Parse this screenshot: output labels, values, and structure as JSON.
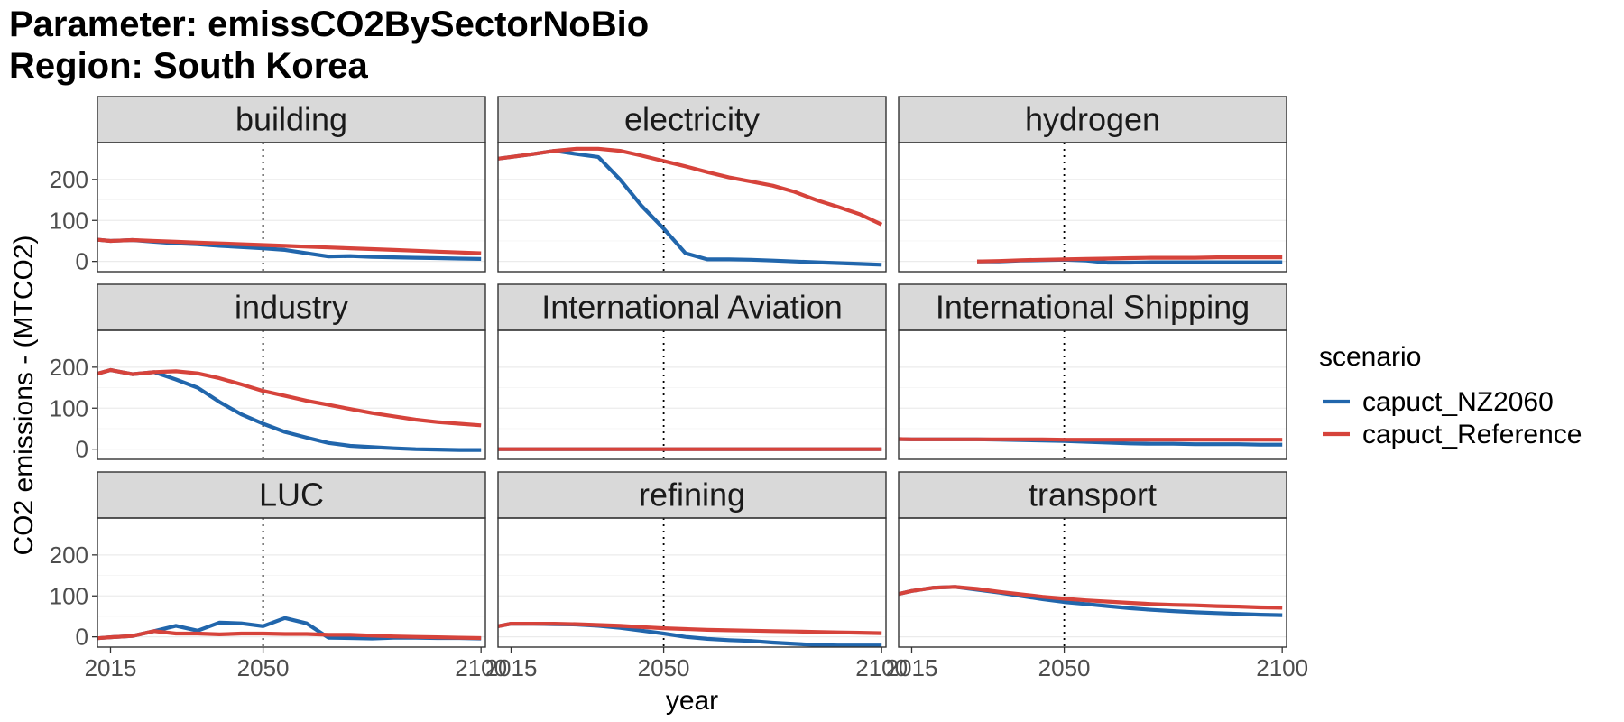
{
  "title_lines": [
    "Parameter: emissCO2BySectorNoBio",
    "Region: South Korea"
  ],
  "colors": {
    "capuct_NZ2060": "#2166ac",
    "capuct_Reference": "#d6433b",
    "strip_fill": "#d9d9d9",
    "grid": "#ebebeb"
  },
  "chart_data": {
    "type": "line",
    "xlabel": "year",
    "ylabel": "CO2 emissions - (MTCO2)",
    "x_ticks": [
      2015,
      2050,
      2100
    ],
    "y_ticks": [
      0,
      100,
      200
    ],
    "xlim": [
      2012,
      2101
    ],
    "ylim": [
      -25,
      290
    ],
    "vline_x": 2050,
    "legend": {
      "title": "scenario",
      "position": "right",
      "entries": [
        "capuct_NZ2060",
        "capuct_Reference"
      ]
    },
    "panels": [
      {
        "name": "building",
        "series": [
          {
            "name": "capuct_NZ2060",
            "x": [
              2010,
              2015,
              2020,
              2025,
              2030,
              2035,
              2040,
              2045,
              2050,
              2055,
              2060,
              2065,
              2070,
              2075,
              2080,
              2085,
              2090,
              2095,
              2100
            ],
            "values": [
              55,
              50,
              52,
              48,
              44,
              42,
              38,
              35,
              32,
              28,
              20,
              12,
              13,
              11,
              10,
              9,
              8,
              7,
              6
            ]
          },
          {
            "name": "capuct_Reference",
            "x": [
              2010,
              2015,
              2020,
              2025,
              2030,
              2035,
              2040,
              2045,
              2050,
              2055,
              2060,
              2065,
              2070,
              2075,
              2080,
              2085,
              2090,
              2095,
              2100
            ],
            "values": [
              55,
              50,
              52,
              50,
              48,
              46,
              44,
              42,
              40,
              38,
              36,
              34,
              32,
              30,
              28,
              26,
              24,
              22,
              20
            ]
          }
        ]
      },
      {
        "name": "electricity",
        "series": [
          {
            "name": "capuct_NZ2060",
            "x": [
              2010,
              2015,
              2020,
              2025,
              2030,
              2035,
              2040,
              2045,
              2050,
              2055,
              2060,
              2065,
              2070,
              2075,
              2080,
              2085,
              2090,
              2095,
              2100
            ],
            "values": [
              248,
              255,
              262,
              270,
              262,
              255,
              200,
              135,
              80,
              20,
              5,
              5,
              4,
              2,
              0,
              -2,
              -4,
              -6,
              -8
            ]
          },
          {
            "name": "capuct_Reference",
            "x": [
              2010,
              2015,
              2020,
              2025,
              2030,
              2035,
              2040,
              2045,
              2050,
              2055,
              2060,
              2065,
              2070,
              2075,
              2080,
              2085,
              2090,
              2095,
              2100
            ],
            "values": [
              248,
              255,
              262,
              270,
              275,
              275,
              270,
              258,
              245,
              232,
              218,
              205,
              195,
              185,
              170,
              150,
              133,
              115,
              90
            ]
          }
        ]
      },
      {
        "name": "hydrogen",
        "series": [
          {
            "name": "capuct_NZ2060",
            "x": [
              2030,
              2035,
              2040,
              2045,
              2050,
              2055,
              2060,
              2065,
              2070,
              2075,
              2080,
              2085,
              2090,
              2095,
              2100
            ],
            "values": [
              0,
              0,
              2,
              3,
              4,
              2,
              -3,
              -3,
              -2,
              -2,
              -2,
              -2,
              -2,
              -2,
              -2
            ]
          },
          {
            "name": "capuct_Reference",
            "x": [
              2030,
              2035,
              2040,
              2045,
              2050,
              2055,
              2060,
              2065,
              2070,
              2075,
              2080,
              2085,
              2090,
              2095,
              2100
            ],
            "values": [
              0,
              1,
              3,
              4,
              5,
              6,
              7,
              8,
              9,
              9,
              9,
              10,
              10,
              10,
              10
            ]
          }
        ]
      },
      {
        "name": "industry",
        "series": [
          {
            "name": "capuct_NZ2060",
            "x": [
              2010,
              2015,
              2020,
              2025,
              2030,
              2035,
              2040,
              2045,
              2050,
              2055,
              2060,
              2065,
              2070,
              2075,
              2080,
              2085,
              2090,
              2095,
              2100
            ],
            "values": [
              178,
              193,
              183,
              188,
              170,
              150,
              115,
              85,
              62,
              42,
              28,
              15,
              8,
              5,
              2,
              0,
              -1,
              -2,
              -2
            ]
          },
          {
            "name": "capuct_Reference",
            "x": [
              2010,
              2015,
              2020,
              2025,
              2030,
              2035,
              2040,
              2045,
              2050,
              2055,
              2060,
              2065,
              2070,
              2075,
              2080,
              2085,
              2090,
              2095,
              2100
            ],
            "values": [
              178,
              193,
              183,
              188,
              190,
              185,
              173,
              158,
              142,
              130,
              118,
              108,
              98,
              88,
              80,
              72,
              66,
              62,
              58
            ]
          }
        ]
      },
      {
        "name": "International Aviation",
        "series": [
          {
            "name": "capuct_NZ2060",
            "x": [
              2010,
              2100
            ],
            "values": [
              0,
              0
            ]
          },
          {
            "name": "capuct_Reference",
            "x": [
              2010,
              2100
            ],
            "values": [
              0,
              0
            ]
          }
        ]
      },
      {
        "name": "International Shipping",
        "series": [
          {
            "name": "capuct_NZ2060",
            "x": [
              2010,
              2015,
              2020,
              2025,
              2030,
              2035,
              2040,
              2045,
              2050,
              2055,
              2060,
              2065,
              2070,
              2075,
              2080,
              2085,
              2090,
              2095,
              2100
            ],
            "values": [
              25,
              24,
              24,
              24,
              24,
              23,
              22,
              21,
              20,
              18,
              16,
              14,
              13,
              13,
              12,
              12,
              12,
              11,
              11
            ]
          },
          {
            "name": "capuct_Reference",
            "x": [
              2010,
              2015,
              2020,
              2025,
              2030,
              2035,
              2040,
              2045,
              2050,
              2055,
              2060,
              2065,
              2070,
              2075,
              2080,
              2085,
              2090,
              2095,
              2100
            ],
            "values": [
              25,
              24,
              24,
              24,
              24,
              24,
              24,
              24,
              23,
              23,
              23,
              23,
              23,
              23,
              23,
              23,
              23,
              23,
              23
            ]
          }
        ]
      },
      {
        "name": "LUC",
        "series": [
          {
            "name": "capuct_NZ2060",
            "x": [
              2010,
              2015,
              2020,
              2025,
              2030,
              2035,
              2040,
              2045,
              2050,
              2055,
              2060,
              2065,
              2070,
              2075,
              2080,
              2085,
              2090,
              2095,
              2100
            ],
            "values": [
              -5,
              -1,
              2,
              14,
              27,
              15,
              35,
              33,
              26,
              46,
              33,
              -2,
              -3,
              -4,
              -2,
              -2,
              -3,
              -3,
              -4
            ]
          },
          {
            "name": "capuct_Reference",
            "x": [
              2010,
              2015,
              2020,
              2025,
              2030,
              2035,
              2040,
              2045,
              2050,
              2055,
              2060,
              2065,
              2070,
              2075,
              2080,
              2085,
              2090,
              2095,
              2100
            ],
            "values": [
              -5,
              -1,
              2,
              14,
              8,
              8,
              6,
              8,
              8,
              7,
              7,
              5,
              5,
              3,
              1,
              0,
              -1,
              -2,
              -3
            ]
          }
        ]
      },
      {
        "name": "refining",
        "series": [
          {
            "name": "capuct_NZ2060",
            "x": [
              2010,
              2015,
              2020,
              2025,
              2030,
              2035,
              2040,
              2045,
              2050,
              2055,
              2060,
              2065,
              2070,
              2075,
              2080,
              2085,
              2090,
              2095,
              2100
            ],
            "values": [
              22,
              32,
              32,
              31,
              30,
              27,
              22,
              15,
              8,
              0,
              -5,
              -8,
              -10,
              -14,
              -17,
              -20,
              -21,
              -21,
              -21
            ]
          },
          {
            "name": "capuct_Reference",
            "x": [
              2010,
              2015,
              2020,
              2025,
              2030,
              2035,
              2040,
              2045,
              2050,
              2055,
              2060,
              2065,
              2070,
              2075,
              2080,
              2085,
              2090,
              2095,
              2100
            ],
            "values": [
              22,
              32,
              32,
              32,
              31,
              29,
              27,
              24,
              21,
              19,
              17,
              16,
              15,
              14,
              13,
              12,
              11,
              10,
              9
            ]
          }
        ]
      },
      {
        "name": "transport",
        "series": [
          {
            "name": "capuct_NZ2060",
            "x": [
              2010,
              2015,
              2020,
              2025,
              2030,
              2035,
              2040,
              2045,
              2050,
              2055,
              2060,
              2065,
              2070,
              2075,
              2080,
              2085,
              2090,
              2095,
              2100
            ],
            "values": [
              100,
              112,
              120,
              122,
              115,
              108,
              100,
              92,
              85,
              80,
              75,
              70,
              66,
              63,
              60,
              58,
              56,
              54,
              53
            ]
          },
          {
            "name": "capuct_Reference",
            "x": [
              2010,
              2015,
              2020,
              2025,
              2030,
              2035,
              2040,
              2045,
              2050,
              2055,
              2060,
              2065,
              2070,
              2075,
              2080,
              2085,
              2090,
              2095,
              2100
            ],
            "values": [
              100,
              112,
              120,
              122,
              117,
              110,
              104,
              98,
              93,
              89,
              86,
              83,
              80,
              78,
              77,
              75,
              74,
              72,
              71
            ]
          }
        ]
      }
    ]
  }
}
